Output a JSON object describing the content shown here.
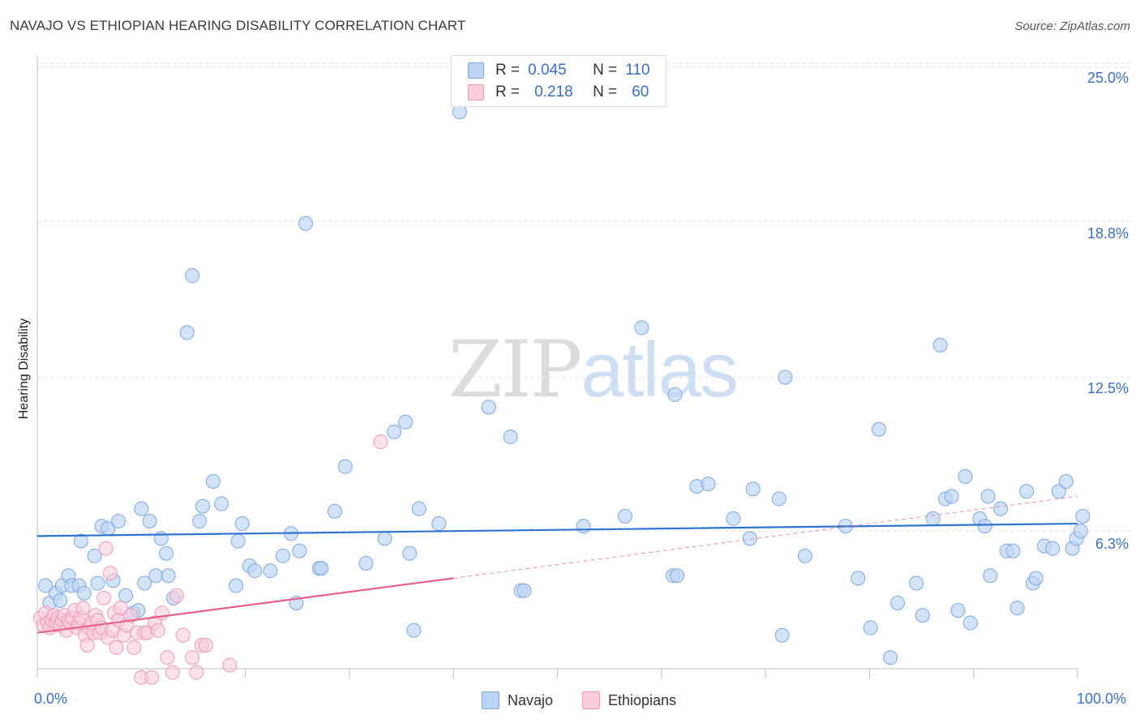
{
  "title": "NAVAJO VS ETHIOPIAN HEARING DISABILITY CORRELATION CHART",
  "source": "Source: ZipAtlas.com",
  "watermark": {
    "zip": "ZIP",
    "atlas": "atlas"
  },
  "colors": {
    "navajo": "#8fb8ea",
    "navajo_line": "#2f74d0",
    "ethiopian": "#f4a6c0",
    "ethiopian_line": "#e8608a",
    "tick_text": "#3a6fc4"
  },
  "legend": {
    "rows": [
      {
        "r_label": "R =",
        "r_value": "0.045",
        "n_label": "N =",
        "n_value": "110"
      },
      {
        "r_label": "R =",
        "r_value": "0.218",
        "n_label": "N =",
        "n_value": "60"
      }
    ]
  },
  "bottom_legend": [
    {
      "label": "Navajo"
    },
    {
      "label": "Ethiopians"
    }
  ],
  "chart_data": {
    "type": "scatter",
    "title": "NAVAJO VS ETHIOPIAN HEARING DISABILITY CORRELATION CHART",
    "xlabel": "",
    "ylabel": "Hearing Disability",
    "xlim": [
      0,
      100
    ],
    "ylim": [
      0,
      26
    ],
    "x_tick_labels": [
      "0.0%",
      "100.0%"
    ],
    "y_ticks": [
      {
        "value": 6.3,
        "label": "6.3%"
      },
      {
        "value": 12.5,
        "label": "12.5%"
      },
      {
        "value": 18.8,
        "label": "18.8%"
      },
      {
        "value": 25.0,
        "label": "25.0%"
      }
    ],
    "grid": true,
    "series": [
      {
        "name": "Navajo",
        "R": 0.045,
        "N": 110,
        "trend": {
          "x0": 0,
          "y0": 6.1,
          "x1": 100,
          "y1": 6.6,
          "dashed_from": null
        },
        "points": [
          [
            0.8,
            4.1
          ],
          [
            1.2,
            3.4
          ],
          [
            1.8,
            3.8
          ],
          [
            2.2,
            3.5
          ],
          [
            2.4,
            4.1
          ],
          [
            3,
            4.5
          ],
          [
            3.3,
            4.1
          ],
          [
            4,
            4.1
          ],
          [
            4.2,
            5.9
          ],
          [
            4.5,
            3.8
          ],
          [
            5.5,
            5.3
          ],
          [
            5.8,
            4.2
          ],
          [
            6.2,
            6.5
          ],
          [
            6.8,
            6.4
          ],
          [
            7.3,
            4.3
          ],
          [
            7.8,
            6.7
          ],
          [
            8.5,
            3.7
          ],
          [
            9.2,
            3.0
          ],
          [
            9.7,
            3.1
          ],
          [
            10,
            7.2
          ],
          [
            10.3,
            4.2
          ],
          [
            10.8,
            6.7
          ],
          [
            11.4,
            4.5
          ],
          [
            11.9,
            6.0
          ],
          [
            12.4,
            5.4
          ],
          [
            12.6,
            4.5
          ],
          [
            13.1,
            3.6
          ],
          [
            14.4,
            14.3
          ],
          [
            14.9,
            16.6
          ],
          [
            15.6,
            6.7
          ],
          [
            15.9,
            7.3
          ],
          [
            16.9,
            8.3
          ],
          [
            17.7,
            7.4
          ],
          [
            19.1,
            4.1
          ],
          [
            19.3,
            5.9
          ],
          [
            19.7,
            6.6
          ],
          [
            20.4,
            4.9
          ],
          [
            20.9,
            4.7
          ],
          [
            22.4,
            4.7
          ],
          [
            23.6,
            5.3
          ],
          [
            24.4,
            6.2
          ],
          [
            24.9,
            3.4
          ],
          [
            25.2,
            5.5
          ],
          [
            25.8,
            18.7
          ],
          [
            27.1,
            4.8
          ],
          [
            27.3,
            4.8
          ],
          [
            28.6,
            7.1
          ],
          [
            29.6,
            8.9
          ],
          [
            31.6,
            5.0
          ],
          [
            33.4,
            6.0
          ],
          [
            34.3,
            10.3
          ],
          [
            35.4,
            10.7
          ],
          [
            35.8,
            5.4
          ],
          [
            36.2,
            2.3
          ],
          [
            36.7,
            7.2
          ],
          [
            38.6,
            6.6
          ],
          [
            40.6,
            23.2
          ],
          [
            43.4,
            11.3
          ],
          [
            45.5,
            10.1
          ],
          [
            46.5,
            3.9
          ],
          [
            46.8,
            3.9
          ],
          [
            52.5,
            6.5
          ],
          [
            56.5,
            6.9
          ],
          [
            58.1,
            14.5
          ],
          [
            61.1,
            4.5
          ],
          [
            61.5,
            4.5
          ],
          [
            61.3,
            11.8
          ],
          [
            63.4,
            8.1
          ],
          [
            64.5,
            8.2
          ],
          [
            66.9,
            6.8
          ],
          [
            68.5,
            6.0
          ],
          [
            68.8,
            8.0
          ],
          [
            71.3,
            7.6
          ],
          [
            71.6,
            2.1
          ],
          [
            71.9,
            12.5
          ],
          [
            73.8,
            5.3
          ],
          [
            77.7,
            6.5
          ],
          [
            78.9,
            4.4
          ],
          [
            80.1,
            2.4
          ],
          [
            80.9,
            10.4
          ],
          [
            82,
            1.2
          ],
          [
            82.7,
            3.4
          ],
          [
            84.5,
            4.2
          ],
          [
            85.1,
            2.9
          ],
          [
            86.1,
            6.8
          ],
          [
            86.8,
            13.8
          ],
          [
            87.3,
            7.6
          ],
          [
            87.9,
            7.7
          ],
          [
            88.5,
            3.1
          ],
          [
            89.2,
            8.5
          ],
          [
            89.7,
            2.6
          ],
          [
            90.6,
            6.8
          ],
          [
            91.1,
            6.5
          ],
          [
            91.4,
            7.7
          ],
          [
            91.6,
            4.5
          ],
          [
            92.6,
            7.2
          ],
          [
            93.2,
            5.5
          ],
          [
            93.8,
            5.5
          ],
          [
            94.2,
            3.2
          ],
          [
            95.1,
            7.9
          ],
          [
            95.7,
            4.2
          ],
          [
            96,
            4.4
          ],
          [
            96.8,
            5.7
          ],
          [
            97.6,
            5.6
          ],
          [
            98.2,
            7.9
          ],
          [
            98.9,
            8.3
          ],
          [
            99.5,
            5.6
          ],
          [
            99.9,
            6.0
          ],
          [
            100.3,
            6.3
          ],
          [
            100.5,
            6.9
          ]
        ]
      },
      {
        "name": "Ethiopians",
        "R": 0.218,
        "N": 60,
        "trend": {
          "x0": 0,
          "y0": 2.2,
          "x1": 100,
          "y1": 7.7,
          "solid_until": 40
        },
        "points": [
          [
            0.3,
            2.8
          ],
          [
            0.6,
            2.5
          ],
          [
            0.8,
            3.0
          ],
          [
            1.0,
            2.6
          ],
          [
            1.2,
            2.4
          ],
          [
            1.4,
            2.7
          ],
          [
            1.6,
            2.9
          ],
          [
            1.8,
            2.6
          ],
          [
            2.0,
            2.8
          ],
          [
            2.2,
            2.5
          ],
          [
            2.4,
            2.7
          ],
          [
            2.6,
            2.9
          ],
          [
            2.8,
            2.3
          ],
          [
            3.0,
            2.7
          ],
          [
            3.2,
            2.6
          ],
          [
            3.4,
            2.8
          ],
          [
            3.6,
            3.1
          ],
          [
            3.8,
            2.4
          ],
          [
            4.0,
            2.6
          ],
          [
            4.2,
            2.8
          ],
          [
            4.4,
            3.2
          ],
          [
            4.6,
            2.1
          ],
          [
            4.8,
            1.7
          ],
          [
            5.0,
            2.4
          ],
          [
            5.2,
            2.6
          ],
          [
            5.4,
            2.2
          ],
          [
            5.6,
            2.9
          ],
          [
            5.8,
            2.7
          ],
          [
            6.0,
            2.2
          ],
          [
            6.2,
            2.4
          ],
          [
            6.4,
            3.6
          ],
          [
            6.6,
            5.6
          ],
          [
            6.8,
            2.0
          ],
          [
            7.0,
            4.6
          ],
          [
            7.2,
            2.3
          ],
          [
            7.4,
            3.0
          ],
          [
            7.6,
            1.6
          ],
          [
            7.8,
            2.7
          ],
          [
            8.0,
            3.2
          ],
          [
            8.3,
            2.1
          ],
          [
            8.6,
            2.5
          ],
          [
            9.0,
            2.9
          ],
          [
            9.3,
            1.6
          ],
          [
            9.6,
            2.2
          ],
          [
            10.0,
            0.4
          ],
          [
            10.3,
            2.2
          ],
          [
            10.6,
            2.2
          ],
          [
            11.0,
            0.4
          ],
          [
            11.3,
            2.6
          ],
          [
            11.6,
            2.3
          ],
          [
            12.0,
            3.0
          ],
          [
            12.5,
            1.2
          ],
          [
            13.0,
            0.6
          ],
          [
            13.4,
            3.7
          ],
          [
            14.0,
            2.1
          ],
          [
            14.9,
            1.2
          ],
          [
            15.3,
            0.6
          ],
          [
            15.8,
            1.7
          ],
          [
            16.2,
            1.7
          ],
          [
            18.5,
            0.9
          ]
        ],
        "outlier": [
          33.0,
          9.9
        ]
      }
    ]
  }
}
